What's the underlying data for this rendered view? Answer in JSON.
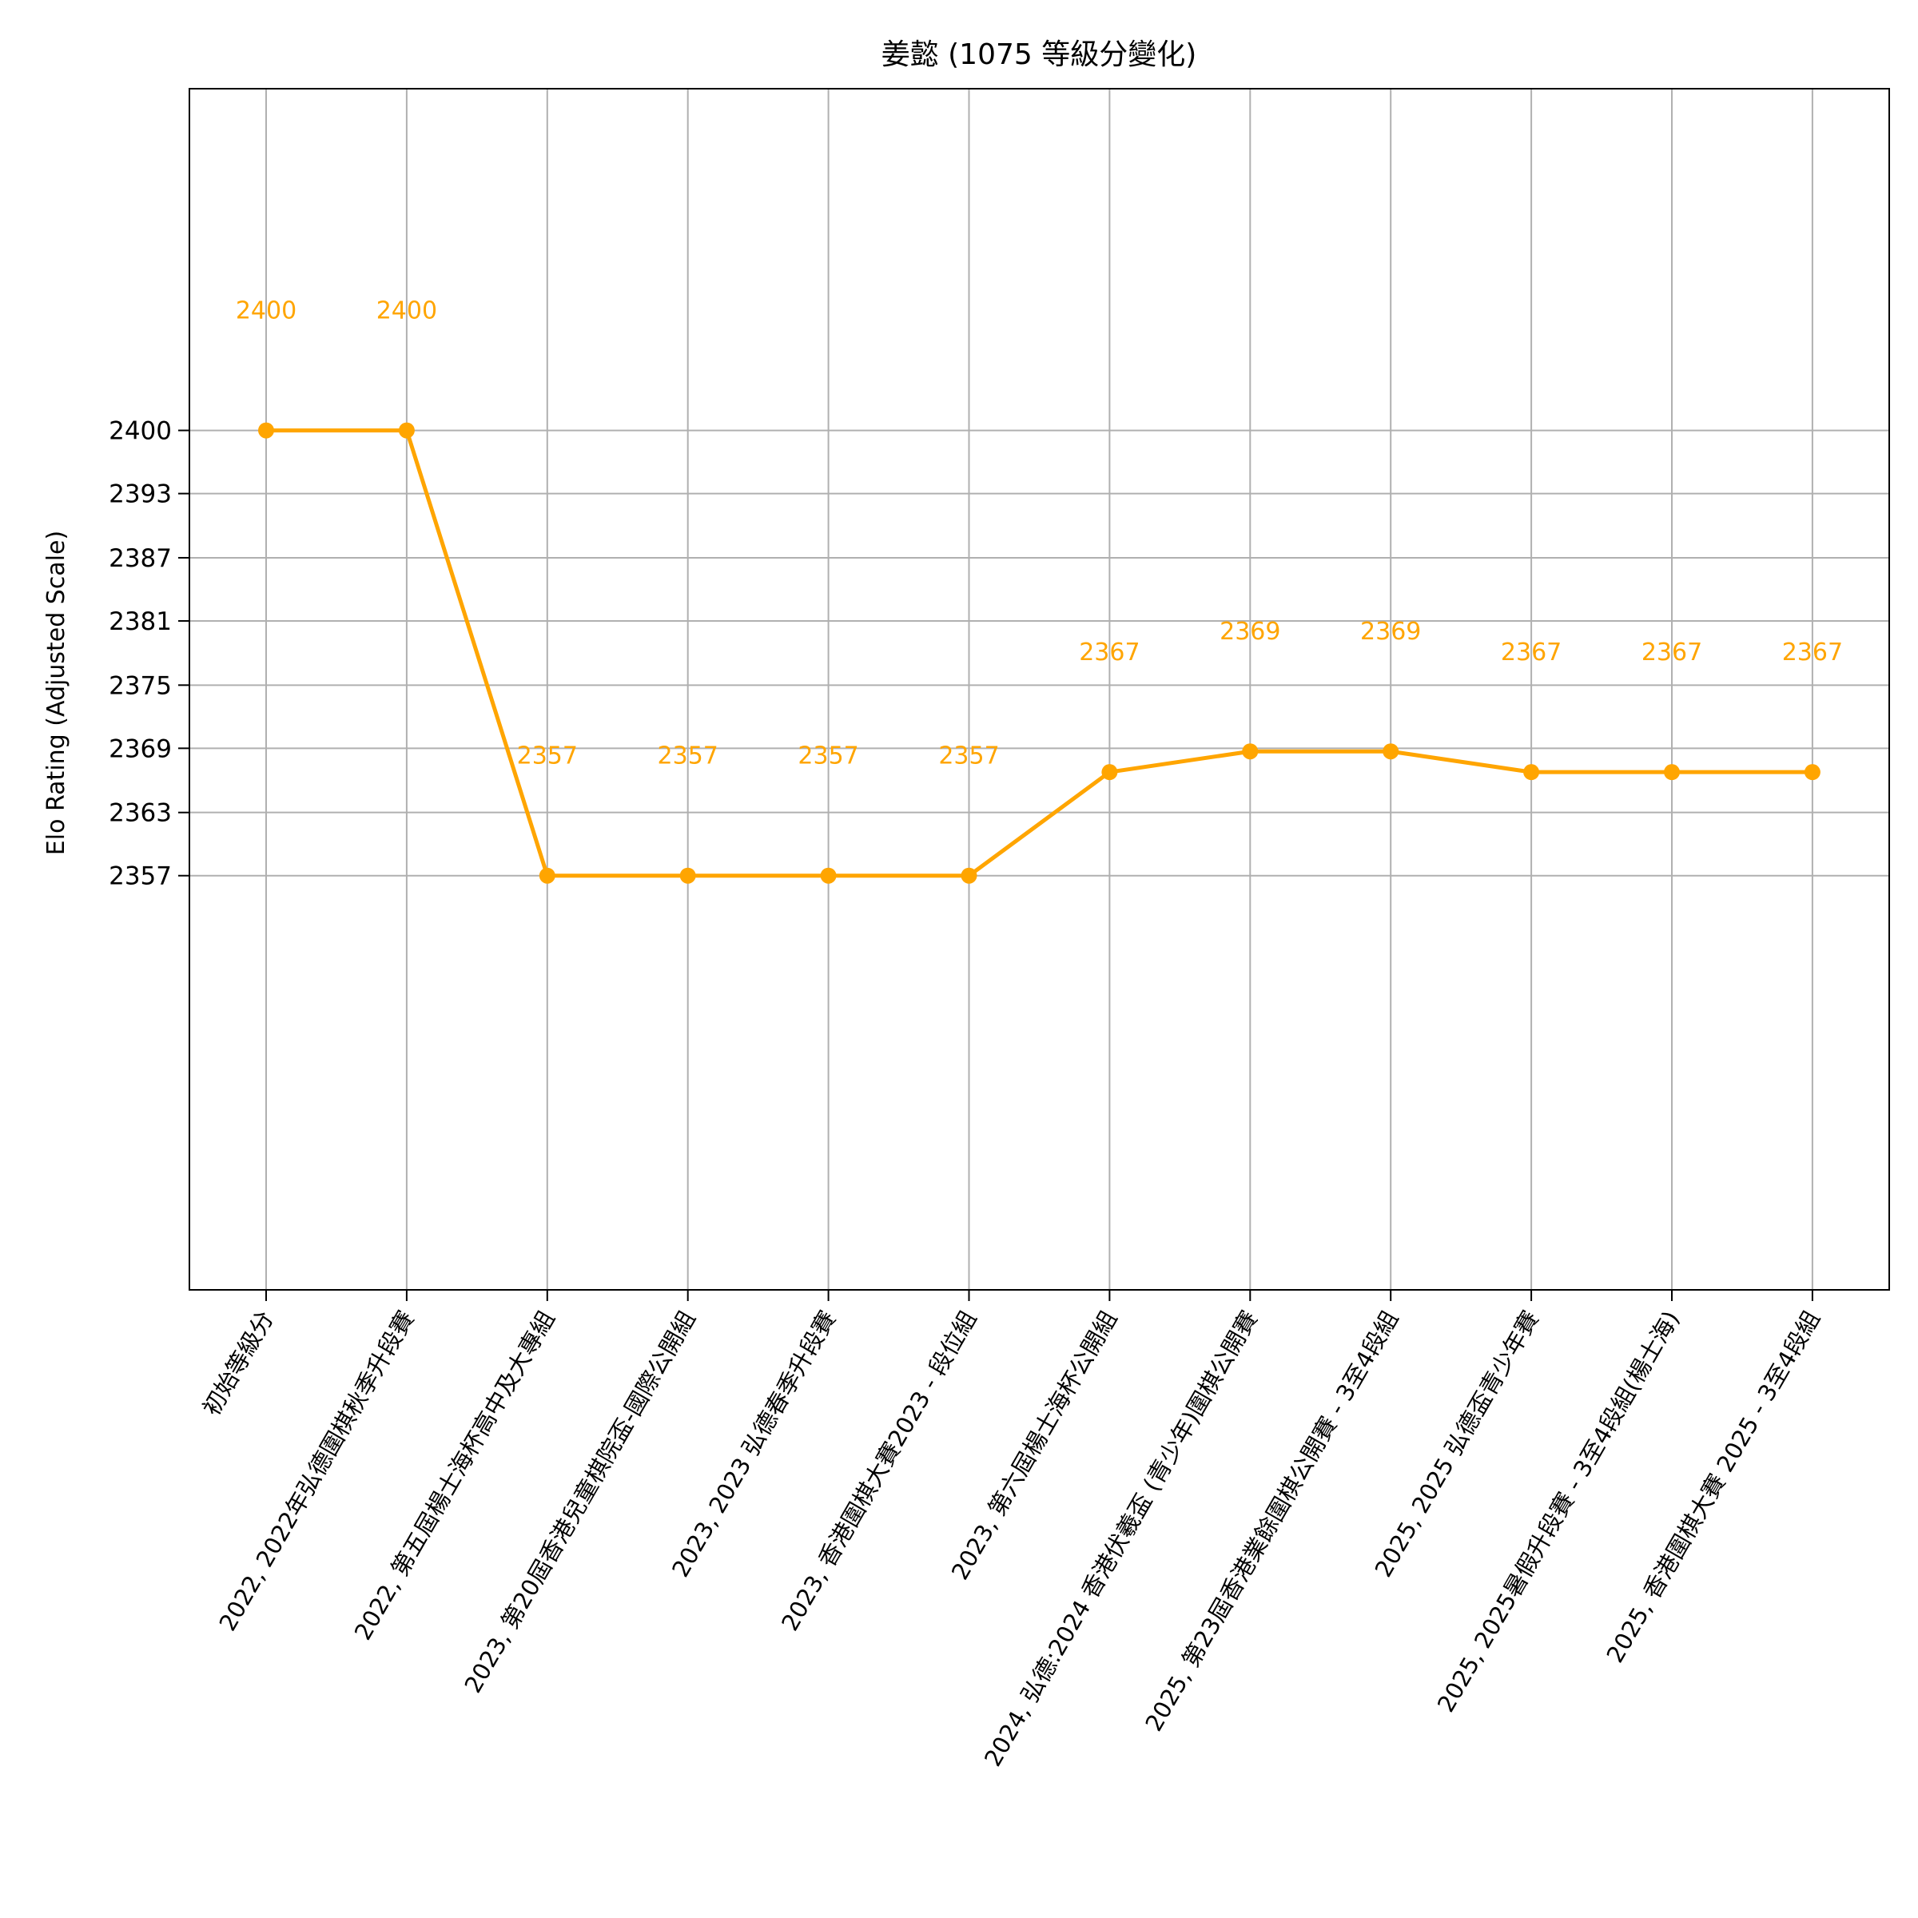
{
  "chart_data": {
    "type": "line",
    "title": "姜懿 (1075 等級分變化)",
    "xlabel": "",
    "ylabel": "Elo Rating (Adjusted Scale)",
    "categories": [
      "初始等級分",
      "2022, 2022年弘德圍棋秋季升段賽",
      "2022, 第五屆楊士海杯高中及大專組",
      "2023, 第20屆香港兒童棋院盃-國際公開組",
      "2023, 2023 弘德春季升段賽",
      "2023, 香港圍棋大賽2023 - 段位組",
      "2023, 第六屆楊士海杯公開組",
      "2024, 弘德:2024 香港伏羲盃 (青少年)圍棋公開賽",
      "2025, 第23屆香港業餘圍棋公開賽 - 3至4段組",
      "2025, 2025 弘德盃青少年賽",
      "2025, 2025暑假升段賽 - 3至4段組(楊士海)",
      "2025, 香港圍棋大賽 2025 - 3至4段組"
    ],
    "series": [
      {
        "values": [
          2400,
          2400,
          2357,
          2357,
          2357,
          2357,
          2367,
          2369,
          2369,
          2367,
          2367,
          2367
        ],
        "labels": [
          "2400",
          "2400",
          "2357",
          "2357",
          "2357",
          "2357",
          "2367",
          "2369",
          "2369",
          "2367",
          "2367",
          "2367"
        ]
      }
    ],
    "yticks": [
      "2400",
      "2393",
      "2387",
      "2381",
      "2375",
      "2369",
      "2363",
      "2357"
    ],
    "ytick_values": [
      2400,
      2393.9,
      2387.7,
      2381.6,
      2375.4,
      2369.3,
      2363.1,
      2357
    ],
    "ylim": [
      2317,
      2433
    ],
    "grid": true,
    "color": "#FFA500"
  }
}
